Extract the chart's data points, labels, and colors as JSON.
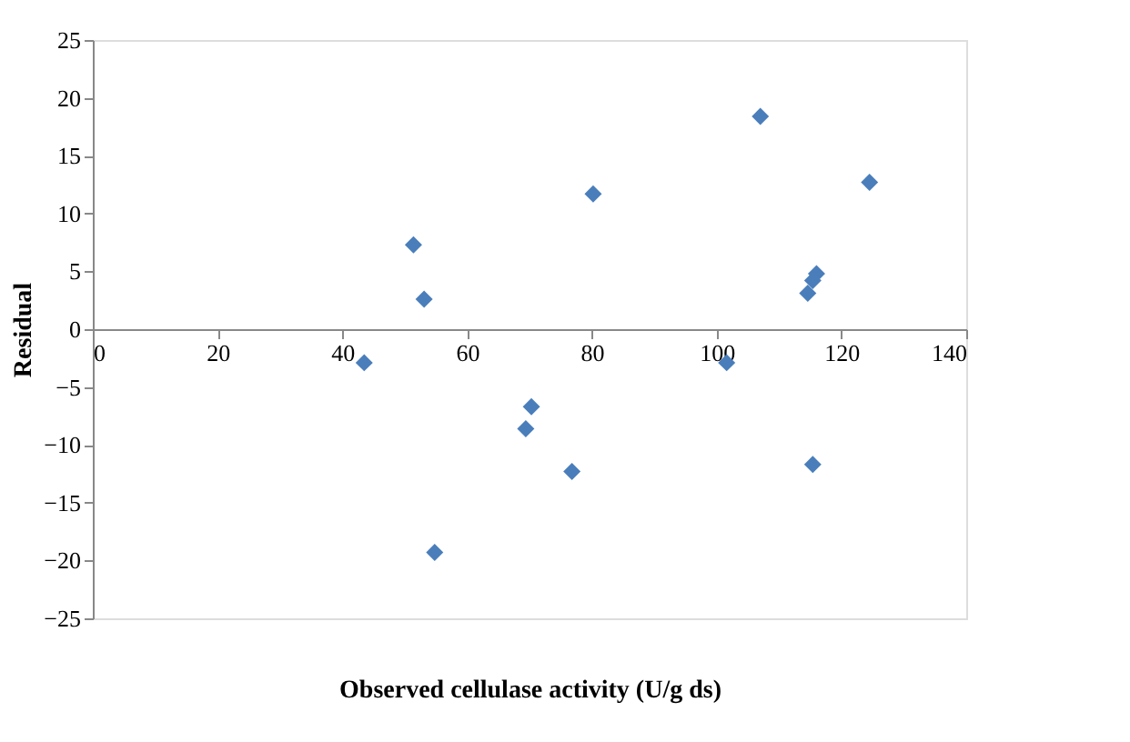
{
  "chart_data": {
    "type": "scatter",
    "xlabel": "Observed cellulase activity (U/g ds)",
    "ylabel": "Residual",
    "x": [
      43.5,
      51.4,
      53.1,
      54.8,
      69.4,
      70.3,
      76.8,
      80.2,
      101.6,
      107,
      114.6,
      115.4,
      116,
      115.4,
      124.5
    ],
    "series": [
      {
        "color": "#4a7ebb",
        "values": [
          -2.9,
          7.3,
          2.6,
          -19.3,
          -8.6,
          -6.7,
          -12.3,
          11.7,
          -2.9,
          18.4,
          3.1,
          4.2,
          4.8,
          -11.7,
          12.7
        ]
      }
    ],
    "xlim": [
      0,
      140
    ],
    "xticks": [
      0,
      20,
      40,
      60,
      80,
      100,
      120,
      140
    ],
    "ylim": [
      -25,
      25
    ],
    "yticks": [
      -25,
      -20,
      -15,
      -10,
      -5,
      0,
      5,
      10,
      15,
      20,
      25
    ],
    "marker": "diamond",
    "grid": false
  }
}
